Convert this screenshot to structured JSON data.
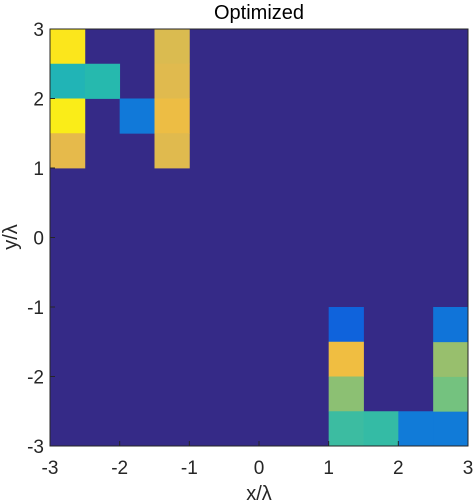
{
  "chart_data": {
    "type": "heatmap",
    "title": "Optimized",
    "xlabel": "x/λ",
    "ylabel": "y/λ",
    "xlim": [
      -3,
      3
    ],
    "ylim": [
      -3,
      3
    ],
    "grid": false,
    "colormap": "parula",
    "xticks": [
      "-3",
      "-2",
      "-1",
      "0",
      "1",
      "2",
      "3"
    ],
    "yticks": [
      "3",
      "2",
      "1",
      "0",
      "-1",
      "-2",
      "-3"
    ],
    "cell_size": 0.5,
    "background_value": 0.0,
    "cells": [
      {
        "x": -2.75,
        "y": 2.75,
        "value": 0.97
      },
      {
        "x": -2.75,
        "y": 2.25,
        "value": 0.52
      },
      {
        "x": -2.75,
        "y": 1.75,
        "value": 0.98
      },
      {
        "x": -2.75,
        "y": 1.25,
        "value": 0.85
      },
      {
        "x": -2.25,
        "y": 2.25,
        "value": 0.55
      },
      {
        "x": -1.75,
        "y": 1.75,
        "value": 0.28
      },
      {
        "x": -1.25,
        "y": 2.75,
        "value": 0.83
      },
      {
        "x": -1.25,
        "y": 2.25,
        "value": 0.84
      },
      {
        "x": -1.25,
        "y": 1.75,
        "value": 0.87
      },
      {
        "x": -1.25,
        "y": 1.25,
        "value": 0.84
      },
      {
        "x": 1.25,
        "y": -1.25,
        "value": 0.18
      },
      {
        "x": 1.25,
        "y": -1.75,
        "value": 0.88
      },
      {
        "x": 1.25,
        "y": -2.25,
        "value": 0.7
      },
      {
        "x": 1.25,
        "y": -2.75,
        "value": 0.58
      },
      {
        "x": 1.75,
        "y": -2.75,
        "value": 0.57
      },
      {
        "x": 2.25,
        "y": -2.75,
        "value": 0.29
      },
      {
        "x": 2.75,
        "y": -2.75,
        "value": 0.29
      },
      {
        "x": 2.75,
        "y": -2.25,
        "value": 0.66
      },
      {
        "x": 2.75,
        "y": -1.75,
        "value": 0.72
      },
      {
        "x": 2.75,
        "y": -1.25,
        "value": 0.26
      }
    ]
  }
}
